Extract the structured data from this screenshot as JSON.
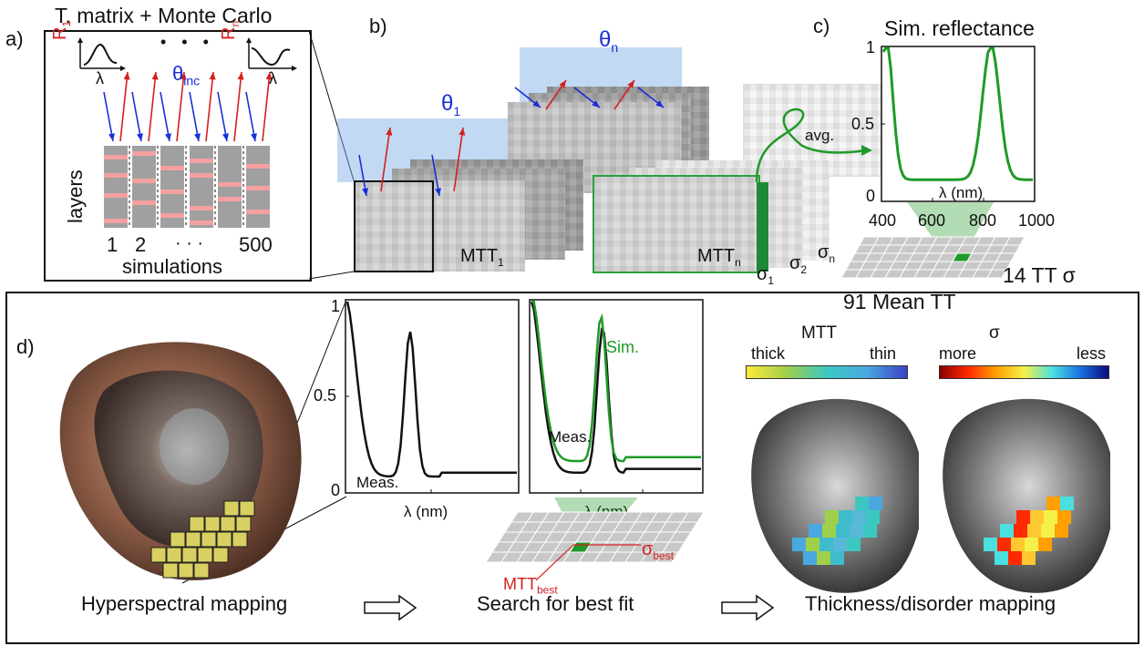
{
  "panel_a": {
    "label": "a)",
    "title": "T. matrix + Monte Carlo",
    "r_first": "R",
    "r_first_sub": "1",
    "r_last": "R",
    "r_last_sub": "n",
    "dots": "• • •",
    "lambda": "λ",
    "theta": "θ",
    "theta_sub": "inc",
    "ylabel": "layers",
    "sim_first": "1",
    "sim_second": "2",
    "sim_dots": "· · ·",
    "sim_last": "500",
    "xlabel": "simulations"
  },
  "panel_b": {
    "label": "b)",
    "theta_1": "θ",
    "theta_1_sub": "1",
    "theta_n": "θ",
    "theta_n_sub": "n",
    "mtt_1": "MTT",
    "mtt_1_sub": "1",
    "mtt_n": "MTT",
    "mtt_n_sub": "n",
    "sigma_1": "σ",
    "sigma_1_sub": "1",
    "sigma_2": "σ",
    "sigma_2_sub": "2",
    "sigma_n": "σ",
    "sigma_n_sub": "n",
    "avg": "avg."
  },
  "panel_c": {
    "label": "c)",
    "title": "Sim. reflectance",
    "ylabel_ticks": [
      "1",
      "0.5",
      "0"
    ],
    "xticks": [
      "400",
      "600",
      "800",
      "1000"
    ],
    "xlabel": "λ (nm)",
    "grid_mean": "91 Mean TT",
    "grid_sigma": "14 TT σ"
  },
  "panel_d": {
    "label": "d)",
    "meas_yticks": [
      "1",
      "0.5",
      "0"
    ],
    "meas_label": "Meas.",
    "xlabel": "λ (nm)",
    "fit_sim_label": "Sim.",
    "fit_meas_label": "Meas.",
    "sigma_best": "σ",
    "sigma_best_sub": "best",
    "mtt_best": "MTT",
    "mtt_best_sub": "best",
    "mtt_bar_title": "MTT",
    "mtt_bar_left": "thick",
    "mtt_bar_right": "thin",
    "sigma_bar_title": "σ",
    "sigma_bar_left": "more",
    "sigma_bar_right": "less",
    "step_1": "Hyperspectral mapping",
    "step_2": "Search for best fit",
    "step_3": "Thickness/disorder mapping"
  },
  "colors": {
    "blue_arrow": "#1a2fd6",
    "red_arrow": "#d42020",
    "sim_green": "#1f9a28",
    "layer_pink": "#f4a0a0",
    "layer_gray": "#a0a0a0"
  }
}
